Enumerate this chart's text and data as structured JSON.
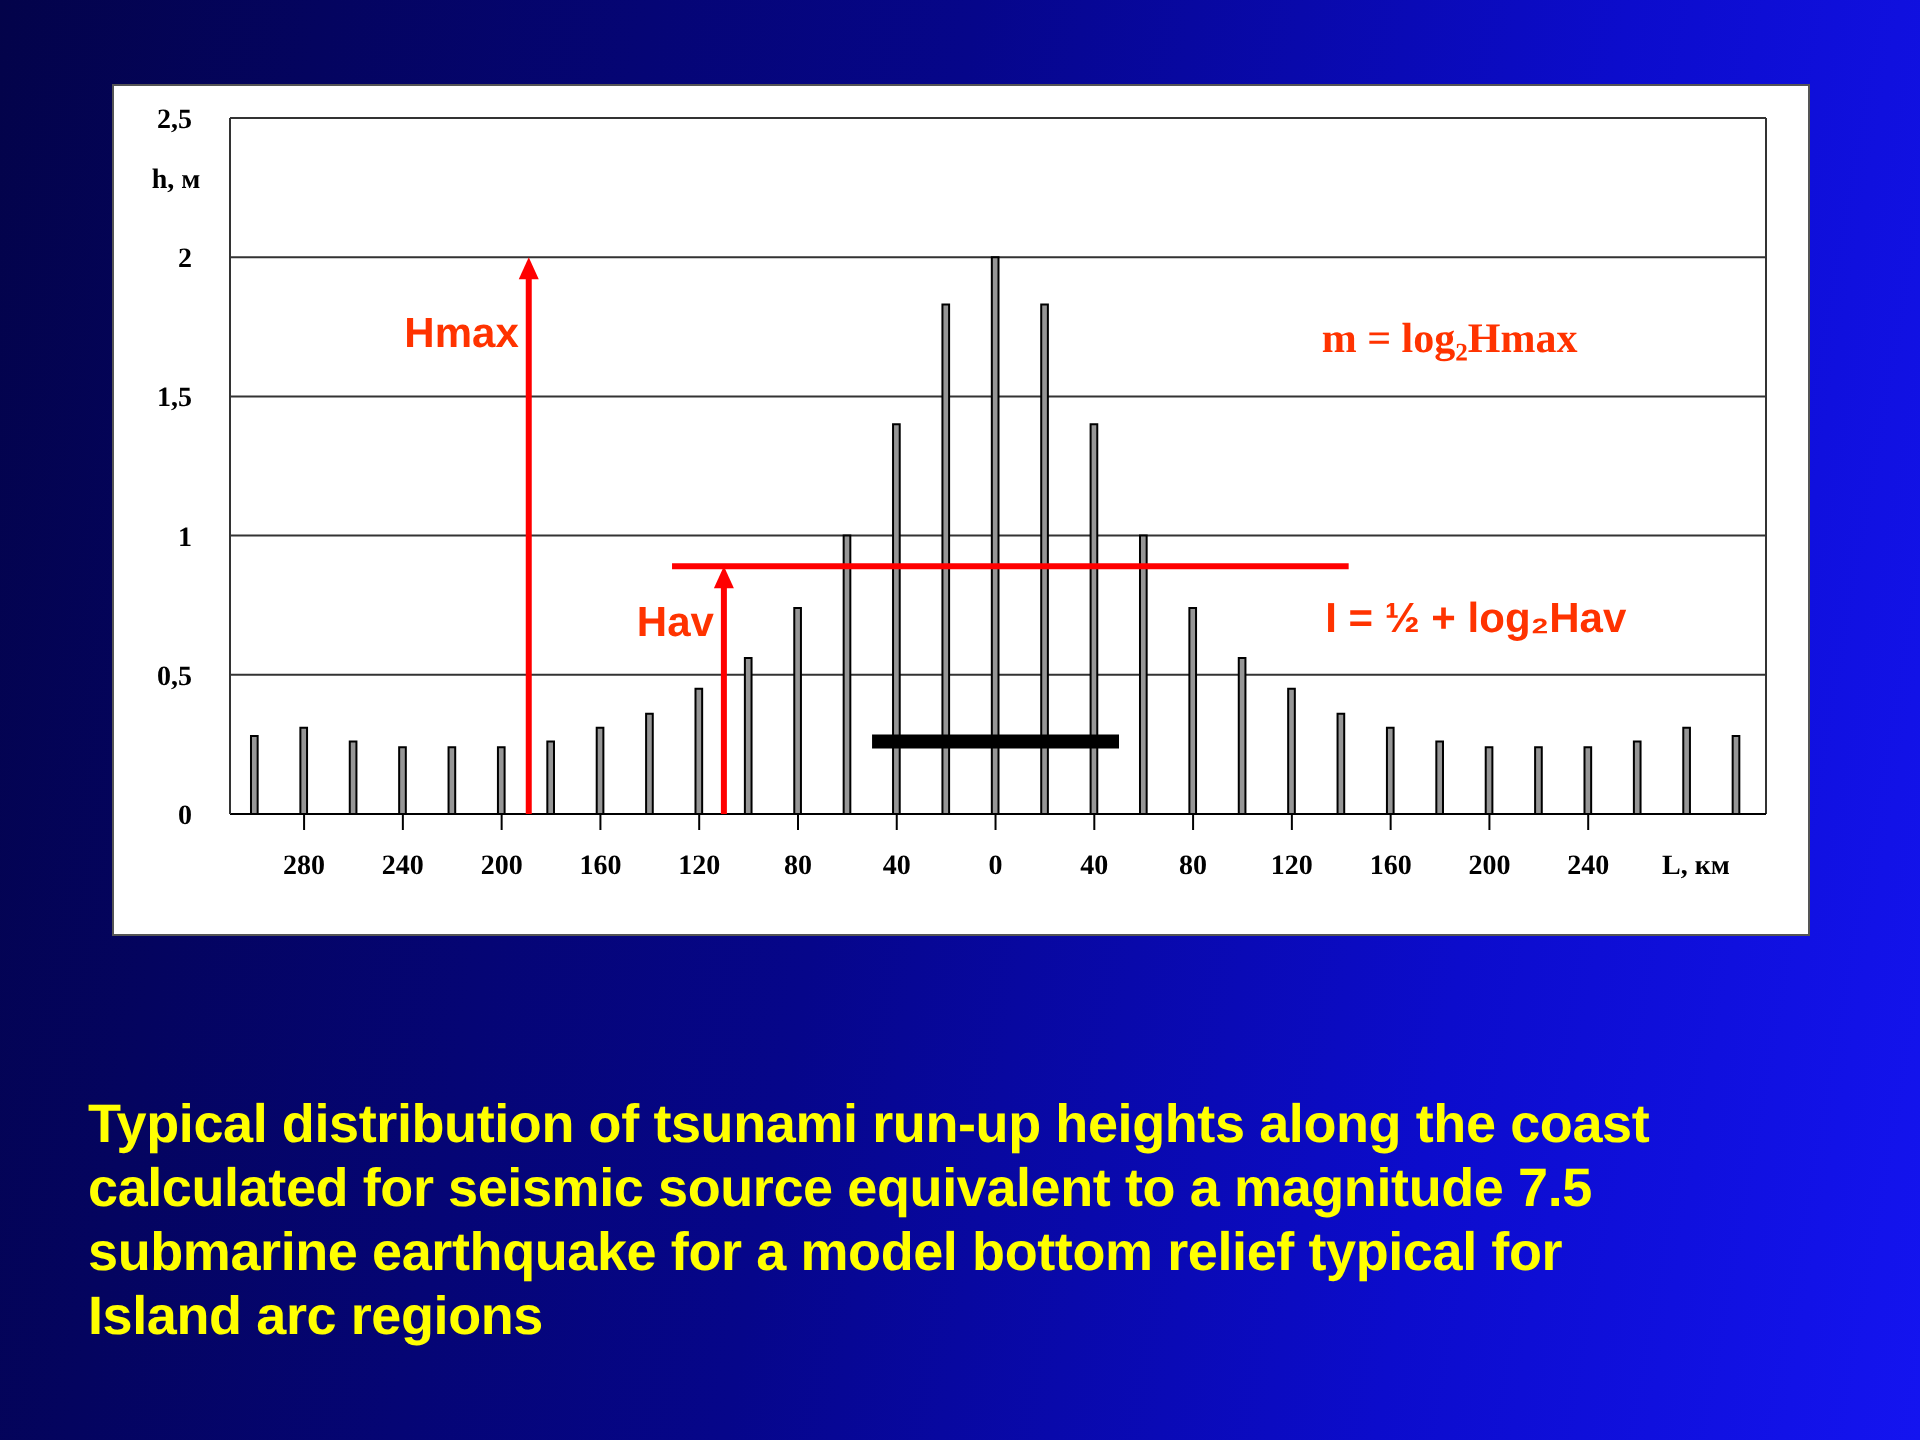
{
  "chart_data": {
    "type": "bar",
    "x": [
      -300,
      -280,
      -260,
      -240,
      -220,
      -200,
      -180,
      -160,
      -140,
      -120,
      -100,
      -80,
      -60,
      -40,
      -20,
      0,
      20,
      40,
      60,
      80,
      100,
      120,
      140,
      160,
      180,
      200,
      220,
      240,
      260,
      280,
      300
    ],
    "series": [
      {
        "type": "line",
        "color": "#000000",
        "x": [
          -50,
          50
        ],
        "values": [
          0.26,
          0.26
        ]
      },
      {
        "color": "#969696",
        "values": [
          0.28,
          0.31,
          0.26,
          0.24,
          0.24,
          0.24,
          0.26,
          0.31,
          0.36,
          0.45,
          0.56,
          0.74,
          1,
          1.4,
          1.83,
          2,
          1.83,
          1.4,
          1,
          0.74,
          0.56,
          0.45,
          0.36,
          0.31,
          0.26,
          0.24,
          0.24,
          0.24,
          0.26,
          0.31,
          0.28
        ]
      },
      {
        "type": "line",
        "color": "#ff0000",
        "x": [
          -131,
          143
        ],
        "values": [
          0.89,
          0.89
        ]
      }
    ],
    "xlabel": "L, км",
    "ylabel": "h, м",
    "xlim": [
      -310,
      312
    ],
    "xticks": [
      {
        "value": -280,
        "label": "280"
      },
      {
        "value": -240,
        "label": "240"
      },
      {
        "value": -200,
        "label": "200"
      },
      {
        "value": -160,
        "label": "160"
      },
      {
        "value": -120,
        "label": "120"
      },
      {
        "value": -80,
        "label": "80"
      },
      {
        "value": -40,
        "label": "40"
      },
      0,
      40,
      80,
      120,
      160,
      200,
      240
    ],
    "ylim": [
      0,
      2.5
    ],
    "yticks": [
      0,
      {
        "value": 0.5,
        "label": "0,5"
      },
      1,
      {
        "value": 1.5,
        "label": "1,5"
      },
      2,
      {
        "value": 2.5,
        "label": "2,5"
      }
    ],
    "grid": "y",
    "annotations": [
      {
        "text": "Hav",
        "x": -110,
        "y": 0.89
      },
      "Hmax",
      "m = log₂Hmax",
      "I = ½ + log₂Hav",
      "Typical distribution of tsunami run-up heights along the coast calculated for seismic source equivalent to a magnitude 7.5 submarine earthquake for a model bottom relief typical for Island arc regions"
    ]
  }
}
